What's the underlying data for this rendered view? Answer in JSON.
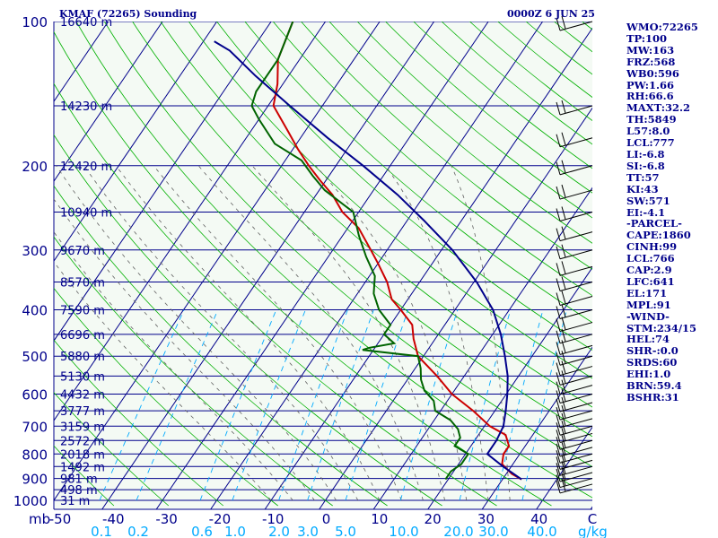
{
  "chart_data": {
    "type": "line",
    "title_left": "KMAF (72265) Sounding",
    "title_right": "0000Z  6 JUN 25",
    "y_axis_label": "mb",
    "x_axis_unit": "g/kg",
    "pressure_ticks": [
      "100",
      "200",
      "300",
      "400",
      "500",
      "600",
      "700",
      "800",
      "900",
      "1000"
    ],
    "temp_ticks": [
      "-50",
      "-40",
      "-30",
      "-20",
      "-10",
      "0",
      "10",
      "20",
      "30",
      "40",
      "C"
    ],
    "mixing_ratio_ticks": [
      "0.1",
      "0.2",
      "0.6",
      "1.0",
      "2.0",
      "3.0",
      "5.0",
      "10.0",
      "20.0",
      "30.0",
      "40.0"
    ],
    "height_labels": [
      {
        "p": 100,
        "text": "16640 m"
      },
      {
        "p": 150,
        "text": "14230 m"
      },
      {
        "p": 200,
        "text": "12420 m"
      },
      {
        "p": 250,
        "text": "10940 m"
      },
      {
        "p": 300,
        "text": "9670 m"
      },
      {
        "p": 350,
        "text": "8570 m"
      },
      {
        "p": 400,
        "text": "7590 m"
      },
      {
        "p": 450,
        "text": "6696 m"
      },
      {
        "p": 500,
        "text": "5880 m"
      },
      {
        "p": 550,
        "text": "5130 m"
      },
      {
        "p": 600,
        "text": "4432 m"
      },
      {
        "p": 650,
        "text": "3777 m"
      },
      {
        "p": 700,
        "text": "3159 m"
      },
      {
        "p": 750,
        "text": "2572 m"
      },
      {
        "p": 800,
        "text": "2018 m"
      },
      {
        "p": 850,
        "text": "1492 m"
      },
      {
        "p": 900,
        "text": "981 m"
      },
      {
        "p": 950,
        "text": "498 m"
      },
      {
        "p": 1000,
        "text": "31 m"
      }
    ],
    "series": [
      {
        "name": "",
        "color": "#cc0000",
        "points": [
          [
            904,
            33.5
          ],
          [
            880,
            31
          ],
          [
            840,
            28
          ],
          [
            800,
            27
          ],
          [
            770,
            27
          ],
          [
            730,
            25
          ],
          [
            700,
            21
          ],
          [
            650,
            16
          ],
          [
            600,
            10
          ],
          [
            550,
            5
          ],
          [
            500,
            -1
          ],
          [
            460,
            -4
          ],
          [
            430,
            -6
          ],
          [
            400,
            -10
          ],
          [
            380,
            -13
          ],
          [
            350,
            -16
          ],
          [
            320,
            -20
          ],
          [
            300,
            -23
          ],
          [
            270,
            -28
          ],
          [
            250,
            -33
          ],
          [
            230,
            -37
          ],
          [
            215,
            -41
          ],
          [
            200,
            -45
          ],
          [
            185,
            -49
          ],
          [
            170,
            -53
          ],
          [
            150,
            -59
          ],
          [
            135,
            -61
          ],
          [
            120,
            -64
          ],
          [
            100,
            -66
          ]
        ]
      },
      {
        "name": "",
        "color": "#006400",
        "points": [
          [
            904,
            19.5
          ],
          [
            870,
            19.5
          ],
          [
            840,
            20.5
          ],
          [
            800,
            20.5
          ],
          [
            770,
            17
          ],
          [
            740,
            17
          ],
          [
            710,
            15.5
          ],
          [
            680,
            13
          ],
          [
            650,
            9
          ],
          [
            620,
            7.5
          ],
          [
            590,
            4.5
          ],
          [
            560,
            2.5
          ],
          [
            530,
            1
          ],
          [
            500,
            -1
          ],
          [
            485,
            -12
          ],
          [
            480,
            -11
          ],
          [
            470,
            -7
          ],
          [
            450,
            -10
          ],
          [
            430,
            -10
          ],
          [
            400,
            -14
          ],
          [
            370,
            -17
          ],
          [
            340,
            -19
          ],
          [
            310,
            -23
          ],
          [
            280,
            -27
          ],
          [
            250,
            -31
          ],
          [
            225,
            -39
          ],
          [
            210,
            -43
          ],
          [
            195,
            -47
          ],
          [
            180,
            -54
          ],
          [
            160,
            -60
          ],
          [
            150,
            -63
          ],
          [
            140,
            -64
          ],
          [
            120,
            -64
          ],
          [
            100,
            -66
          ]
        ]
      },
      {
        "name": "",
        "color": "#00008b",
        "points": [
          [
            904,
            33.5
          ],
          [
            850,
            28.5
          ],
          [
            800,
            24
          ],
          [
            780,
            24
          ],
          [
            750,
            24
          ],
          [
            700,
            23.5
          ],
          [
            650,
            22
          ],
          [
            600,
            20.2
          ],
          [
            550,
            18
          ],
          [
            500,
            15
          ],
          [
            450,
            11.5
          ],
          [
            400,
            7
          ],
          [
            350,
            0.5
          ],
          [
            300,
            -8
          ],
          [
            260,
            -17
          ],
          [
            230,
            -25
          ],
          [
            200,
            -35
          ],
          [
            175,
            -45
          ],
          [
            150,
            -56
          ],
          [
            130,
            -66
          ],
          [
            115,
            -74
          ],
          [
            110,
            -78
          ]
        ]
      }
    ],
    "wind_barbs_pressures": [
      100,
      150,
      175,
      200,
      225,
      250,
      275,
      300,
      325,
      350,
      375,
      400,
      425,
      450,
      475,
      500,
      525,
      550,
      575,
      600,
      625,
      650,
      675,
      700,
      725,
      750,
      775,
      800,
      825,
      850,
      875,
      900,
      925
    ],
    "colors": {
      "isobar": "#00008b",
      "isotherm": "#00008b",
      "dry_adiabat": "#00b000",
      "moist_adiabat": "#606060",
      "mixing_ratio": "#00aaff",
      "label": "#00008b"
    }
  },
  "indices": [
    "WMO:72265",
    "TP:100",
    "MW:163",
    "FRZ:568",
    "WB0:596",
    "PW:1.66",
    "RH:66.6",
    "MAXT:32.2",
    "TH:5849",
    "L57:8.0",
    "LCL:777",
    "LI:-6.8",
    "SI:-6.8",
    "TT:57",
    "KI:43",
    "SW:571",
    "EI:-4.1",
    "-PARCEL-",
    "CAPE:1860",
    "CINH:99",
    "LCL:766",
    "CAP:2.9",
    "LFC:641",
    "EL:171",
    "MPL:91",
    "-WIND-",
    "STM:234/15",
    "HEL:74",
    "SHR-:0.0",
    "SRDS:60",
    "EHI:1.0",
    "BRN:59.4",
    "BSHR:31"
  ]
}
